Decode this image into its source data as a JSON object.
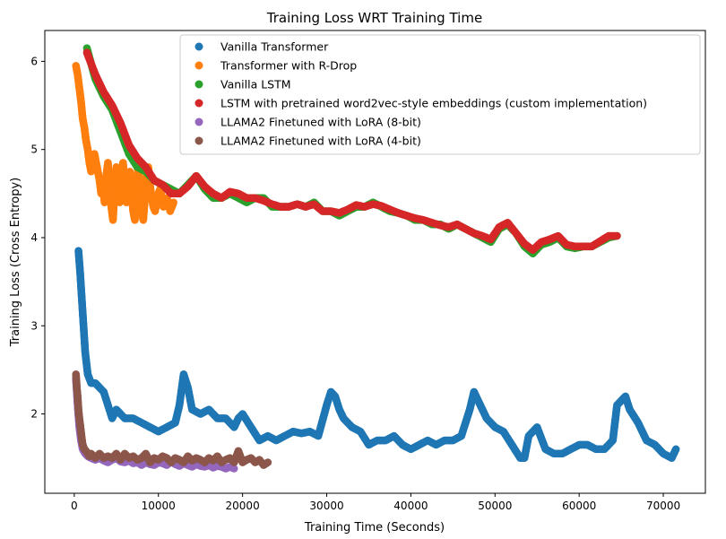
{
  "chart_data": {
    "type": "scatter",
    "title": "Training Loss WRT Training Time",
    "xlabel": "Training Time (Seconds)",
    "ylabel": "Training Loss (Cross Entropy)",
    "xlim": [
      -3500,
      75000
    ],
    "ylim": [
      1.1,
      6.35
    ],
    "xticks": [
      0,
      10000,
      20000,
      30000,
      40000,
      50000,
      60000,
      70000
    ],
    "xtick_labels": [
      "0",
      "10000",
      "20000",
      "30000",
      "40000",
      "50000",
      "60000",
      "70000"
    ],
    "yticks": [
      2,
      3,
      4,
      5,
      6
    ],
    "ytick_labels": [
      "2",
      "3",
      "4",
      "5",
      "6"
    ],
    "grid": false,
    "legend_position": "top-right",
    "series": [
      {
        "name": "Vanilla Transformer",
        "color": "#1f77b4",
        "x": [
          500,
          700,
          900,
          1100,
          1300,
          1600,
          2000,
          2500,
          3000,
          3500,
          4000,
          4500,
          5000,
          5500,
          6000,
          7000,
          8000,
          9000,
          10000,
          11000,
          12000,
          12500,
          13000,
          13500,
          14000,
          15000,
          16000,
          17000,
          18000,
          19000,
          19500,
          20000,
          21000,
          22000,
          23000,
          24000,
          25000,
          26000,
          27000,
          28000,
          29000,
          30000,
          30500,
          31000,
          31500,
          32000,
          33000,
          34000,
          35000,
          36000,
          37000,
          38000,
          39000,
          40000,
          41000,
          42000,
          43000,
          44000,
          45000,
          46000,
          47000,
          47500,
          48000,
          49000,
          50000,
          51000,
          52000,
          53000,
          53500,
          54000,
          55000,
          56000,
          57000,
          58000,
          59000,
          60000,
          61000,
          62000,
          63000,
          64000,
          64500,
          65000,
          65500,
          66000,
          67000,
          68000,
          69000,
          70000,
          71000,
          71500
        ],
        "y": [
          3.85,
          3.6,
          3.3,
          3.0,
          2.7,
          2.45,
          2.35,
          2.35,
          2.3,
          2.25,
          2.1,
          1.95,
          2.05,
          2.0,
          1.95,
          1.95,
          1.9,
          1.85,
          1.8,
          1.85,
          1.9,
          2.1,
          2.45,
          2.3,
          2.05,
          2.0,
          2.05,
          1.95,
          1.95,
          1.85,
          1.95,
          2.0,
          1.85,
          1.7,
          1.75,
          1.7,
          1.75,
          1.8,
          1.78,
          1.8,
          1.75,
          2.1,
          2.25,
          2.2,
          2.05,
          1.95,
          1.85,
          1.8,
          1.65,
          1.7,
          1.7,
          1.75,
          1.65,
          1.6,
          1.65,
          1.7,
          1.65,
          1.7,
          1.7,
          1.75,
          2.05,
          2.25,
          2.15,
          1.95,
          1.85,
          1.8,
          1.65,
          1.5,
          1.5,
          1.75,
          1.85,
          1.6,
          1.55,
          1.55,
          1.6,
          1.65,
          1.65,
          1.6,
          1.6,
          1.7,
          2.1,
          2.15,
          2.2,
          2.05,
          1.9,
          1.7,
          1.65,
          1.55,
          1.5,
          1.6
        ]
      },
      {
        "name": "Transformer with R-Drop",
        "color": "#ff7f0e",
        "x": [
          200,
          400,
          600,
          800,
          1000,
          1200,
          1400,
          1600,
          1800,
          2000,
          2200,
          2400,
          2600,
          2800,
          3000,
          3200,
          3400,
          3600,
          3800,
          4000,
          4200,
          4400,
          4600,
          4800,
          5000,
          5200,
          5400,
          5600,
          5800,
          6000,
          6200,
          6400,
          6600,
          6800,
          7000,
          7200,
          7400,
          7600,
          7800,
          8000,
          8200,
          8400,
          8600,
          8800,
          9000,
          9200,
          9400,
          9600,
          9800,
          10000,
          10200,
          10400,
          10600,
          10800,
          11000,
          11200,
          11400,
          11600,
          11800
        ],
        "y": [
          5.95,
          5.85,
          5.7,
          5.55,
          5.35,
          5.25,
          5.1,
          5.0,
          4.85,
          4.75,
          4.85,
          4.95,
          4.85,
          4.75,
          4.65,
          4.5,
          4.6,
          4.4,
          4.7,
          4.85,
          4.6,
          4.35,
          4.2,
          4.55,
          4.8,
          4.6,
          4.4,
          4.7,
          4.85,
          4.6,
          4.4,
          4.65,
          4.75,
          4.5,
          4.3,
          4.2,
          4.6,
          4.8,
          4.55,
          4.3,
          4.2,
          4.45,
          4.7,
          4.8,
          4.6,
          4.45,
          4.35,
          4.3,
          4.4,
          4.5,
          4.55,
          4.45,
          4.35,
          4.4,
          4.45,
          4.4,
          4.3,
          4.35,
          4.4
        ]
      },
      {
        "name": "Vanilla LSTM",
        "color": "#2ca02c",
        "x": [
          1500,
          2500,
          3500,
          4500,
          5500,
          6500,
          7500,
          8500,
          9500,
          10500,
          11500,
          12500,
          13500,
          14500,
          15500,
          16500,
          17500,
          18500,
          19500,
          20500,
          21500,
          22500,
          23500,
          24500,
          25500,
          26500,
          27500,
          28500,
          29500,
          30500,
          31500,
          32500,
          33500,
          34500,
          35500,
          36500,
          37500,
          38500,
          39500,
          40500,
          41500,
          42500,
          43500,
          44500,
          45500,
          46500,
          47500,
          48500,
          49500,
          50500,
          51500,
          52500,
          53500,
          54500,
          55500,
          56500,
          57500,
          58500,
          59500,
          60500,
          61500,
          62500,
          63500,
          64500
        ],
        "y": [
          6.15,
          5.8,
          5.6,
          5.45,
          5.2,
          4.95,
          4.8,
          4.75,
          4.65,
          4.6,
          4.55,
          4.5,
          4.6,
          4.7,
          4.55,
          4.45,
          4.45,
          4.5,
          4.45,
          4.4,
          4.45,
          4.45,
          4.35,
          4.35,
          4.35,
          4.38,
          4.35,
          4.4,
          4.3,
          4.3,
          4.25,
          4.3,
          4.35,
          4.35,
          4.4,
          4.35,
          4.3,
          4.28,
          4.25,
          4.2,
          4.2,
          4.15,
          4.15,
          4.1,
          4.15,
          4.1,
          4.05,
          4.0,
          3.95,
          4.1,
          4.15,
          4.05,
          3.9,
          3.82,
          3.92,
          3.95,
          4.0,
          3.9,
          3.88,
          3.9,
          3.9,
          3.95,
          4.0,
          4.02
        ]
      },
      {
        "name": "LSTM with pretrained word2vec-style embeddings (custom implementation)",
        "color": "#d62728",
        "x": [
          1500,
          2500,
          3500,
          4500,
          5500,
          6500,
          7500,
          8500,
          9500,
          10500,
          11500,
          12500,
          13500,
          14500,
          15500,
          16500,
          17500,
          18500,
          19500,
          20500,
          21500,
          22500,
          23500,
          24500,
          25500,
          26500,
          27500,
          28500,
          29500,
          30500,
          31500,
          32500,
          33500,
          34500,
          35500,
          36500,
          37500,
          38500,
          39500,
          40500,
          41500,
          42500,
          43500,
          44500,
          45500,
          46500,
          47500,
          48500,
          49500,
          50500,
          51500,
          52500,
          53500,
          54500,
          55500,
          56500,
          57500,
          58500,
          59500,
          60500,
          61500,
          62500,
          63500,
          64500
        ],
        "y": [
          6.1,
          5.85,
          5.65,
          5.5,
          5.3,
          5.05,
          4.9,
          4.8,
          4.65,
          4.6,
          4.5,
          4.5,
          4.58,
          4.7,
          4.58,
          4.5,
          4.45,
          4.52,
          4.5,
          4.45,
          4.45,
          4.42,
          4.38,
          4.35,
          4.35,
          4.38,
          4.35,
          4.38,
          4.3,
          4.3,
          4.28,
          4.32,
          4.37,
          4.35,
          4.38,
          4.36,
          4.32,
          4.28,
          4.25,
          4.22,
          4.2,
          4.17,
          4.14,
          4.12,
          4.15,
          4.1,
          4.05,
          4.02,
          3.98,
          4.12,
          4.17,
          4.05,
          3.93,
          3.86,
          3.95,
          3.98,
          4.02,
          3.92,
          3.9,
          3.9,
          3.9,
          3.96,
          4.02,
          4.02
        ]
      },
      {
        "name": "LLAMA2 Finetuned with LoRA (8-bit)",
        "color": "#9467bd",
        "x": [
          200,
          400,
          600,
          800,
          1000,
          1300,
          1600,
          2000,
          2500,
          3000,
          3500,
          4000,
          4500,
          5000,
          5500,
          6000,
          6500,
          7000,
          7500,
          8000,
          8500,
          9000,
          9500,
          10000,
          10500,
          11000,
          11500,
          12000,
          12500,
          13000,
          13500,
          14000,
          14500,
          15000,
          15500,
          16000,
          16500,
          17000,
          17500,
          18000,
          18500,
          19000
        ],
        "y": [
          2.4,
          2.1,
          1.85,
          1.7,
          1.6,
          1.55,
          1.52,
          1.5,
          1.48,
          1.5,
          1.47,
          1.45,
          1.48,
          1.5,
          1.46,
          1.45,
          1.47,
          1.44,
          1.45,
          1.42,
          1.45,
          1.43,
          1.42,
          1.45,
          1.44,
          1.42,
          1.46,
          1.43,
          1.41,
          1.44,
          1.42,
          1.4,
          1.43,
          1.41,
          1.4,
          1.42,
          1.39,
          1.41,
          1.4,
          1.38,
          1.4,
          1.38
        ]
      },
      {
        "name": "LLAMA2 Finetuned with LoRA (4-bit)",
        "color": "#8c564b",
        "x": [
          200,
          300,
          400,
          500,
          600,
          700,
          800,
          900,
          1000,
          1200,
          1400,
          1600,
          1800,
          2000,
          2500,
          3000,
          3500,
          4000,
          4500,
          5000,
          5500,
          6000,
          6500,
          7000,
          7500,
          8000,
          8500,
          9000,
          9500,
          10000,
          10500,
          11000,
          11500,
          12000,
          12500,
          13000,
          13500,
          14000,
          14500,
          15000,
          15500,
          16000,
          16500,
          17000,
          17500,
          18000,
          18500,
          19000,
          19500,
          20000,
          20500,
          21000,
          21500,
          22000,
          22500,
          23000
        ],
        "y": [
          2.45,
          2.3,
          2.2,
          2.05,
          1.95,
          1.88,
          1.8,
          1.72,
          1.65,
          1.6,
          1.58,
          1.55,
          1.52,
          1.55,
          1.5,
          1.55,
          1.5,
          1.52,
          1.5,
          1.55,
          1.48,
          1.55,
          1.5,
          1.52,
          1.48,
          1.5,
          1.55,
          1.45,
          1.5,
          1.48,
          1.52,
          1.5,
          1.45,
          1.5,
          1.48,
          1.45,
          1.52,
          1.47,
          1.5,
          1.48,
          1.45,
          1.5,
          1.47,
          1.52,
          1.45,
          1.48,
          1.5,
          1.45,
          1.58,
          1.45,
          1.48,
          1.5,
          1.45,
          1.48,
          1.42,
          1.45
        ]
      }
    ]
  }
}
